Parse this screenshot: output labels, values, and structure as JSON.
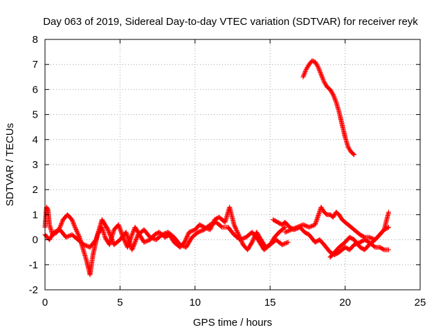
{
  "chart_data": {
    "type": "scatter",
    "title": "Day 063 of 2019, Sidereal Day-to-day VTEC variation (SDTVAR) for receiver reyk",
    "xlabel": "GPS time / hours",
    "ylabel": "SDTVAR / TECUs",
    "xlim": [
      0,
      25
    ],
    "ylim": [
      -2,
      8
    ],
    "xticks": [
      0,
      5,
      10,
      15,
      20,
      25
    ],
    "yticks": [
      -2,
      -1,
      0,
      1,
      2,
      3,
      4,
      5,
      6,
      7,
      8
    ],
    "grid": true,
    "marker": "+",
    "color": "#ff0000",
    "series": [
      {
        "name": "segment-1",
        "x": [
          0.0,
          0.1,
          0.2,
          0.3,
          0.5,
          0.8,
          1.0,
          1.2,
          1.5,
          1.8,
          2.0,
          2.3,
          2.6,
          2.8,
          3.0,
          3.2,
          3.5,
          3.8,
          4.0,
          4.3,
          4.6,
          4.9,
          5.2,
          5.5,
          5.8,
          6.0,
          6.3,
          6.6,
          7.0,
          7.3,
          7.6,
          8.0,
          8.3,
          8.6,
          9.0,
          9.3,
          9.6,
          10.0,
          10.3,
          10.6,
          11.0,
          11.3,
          11.6,
          12.0,
          12.3,
          12.6,
          12.9,
          13.2,
          13.5,
          13.8,
          14.1,
          14.4,
          14.7,
          15.0,
          15.3,
          15.6,
          16.0
        ],
        "y": [
          0.5,
          1.3,
          1.2,
          0.6,
          0.2,
          0.3,
          0.5,
          0.8,
          1.0,
          0.8,
          0.5,
          0.1,
          -0.5,
          -0.9,
          -1.4,
          -0.6,
          0.2,
          0.5,
          0.1,
          -0.2,
          0.4,
          0.6,
          0.1,
          -0.3,
          0.2,
          0.5,
          0.2,
          -0.1,
          0.0,
          0.2,
          0.3,
          0.1,
          0.2,
          -0.1,
          -0.3,
          -0.1,
          0.3,
          0.4,
          0.6,
          0.5,
          0.4,
          0.8,
          0.9,
          0.7,
          1.3,
          0.6,
          0.2,
          -0.2,
          -0.4,
          -0.1,
          0.3,
          0.0,
          -0.3,
          -0.2,
          0.1,
          0.3,
          0.5
        ]
      },
      {
        "name": "segment-2",
        "x": [
          0.0,
          0.3,
          0.6,
          1.0,
          1.4,
          1.8,
          2.2,
          2.6,
          3.0,
          3.4,
          3.8,
          4.2,
          4.6,
          5.0,
          5.4,
          5.8,
          6.2,
          6.6,
          7.0,
          7.4,
          7.8,
          8.2,
          8.6,
          9.0,
          9.4,
          9.8,
          10.2,
          10.6,
          11.0,
          11.4,
          11.8,
          12.2,
          12.6,
          13.0,
          13.4,
          13.8,
          14.2,
          14.6,
          15.0,
          15.4,
          15.8,
          16.2
        ],
        "y": [
          0.2,
          0.0,
          0.3,
          0.4,
          0.1,
          0.2,
          0.0,
          -0.2,
          -0.3,
          0.0,
          0.8,
          0.4,
          -0.2,
          0.0,
          0.3,
          -0.4,
          0.2,
          0.4,
          0.1,
          0.0,
          0.2,
          0.3,
          0.1,
          -0.2,
          -0.3,
          0.1,
          0.3,
          0.4,
          0.6,
          0.7,
          0.5,
          0.5,
          0.2,
          0.0,
          0.1,
          0.3,
          0.0,
          -0.4,
          -0.2,
          0.0,
          -0.2,
          -0.1
        ]
      },
      {
        "name": "segment-3",
        "x": [
          15.2,
          15.5,
          15.8,
          16.0,
          16.3,
          16.6,
          17.0,
          17.3,
          17.6,
          18.0,
          18.3,
          18.6,
          19.0,
          19.3,
          19.6,
          20.0,
          20.3,
          20.6,
          21.0,
          21.3,
          21.6,
          22.0,
          22.3,
          22.6,
          22.9
        ],
        "y": [
          0.8,
          0.7,
          0.6,
          0.7,
          0.5,
          0.4,
          0.5,
          0.3,
          0.2,
          -0.1,
          0.0,
          -0.2,
          -0.5,
          -0.6,
          -0.5,
          -0.3,
          -0.4,
          -0.2,
          -0.1,
          0.0,
          -0.1,
          -0.3,
          -0.3,
          -0.4,
          -0.4
        ]
      },
      {
        "name": "segment-4",
        "x": [
          16.0,
          16.4,
          16.8,
          17.2,
          17.6,
          18.0,
          18.4,
          18.6,
          18.8,
          19.0,
          19.2,
          19.4,
          19.6,
          19.8,
          20.0,
          20.2,
          20.4,
          20.6,
          20.8,
          21.0,
          21.3,
          21.6,
          22.0,
          22.3,
          22.6,
          22.9
        ],
        "y": [
          0.3,
          0.4,
          0.5,
          0.6,
          0.5,
          0.6,
          1.3,
          1.1,
          1.0,
          1.0,
          0.9,
          1.1,
          1.0,
          0.8,
          0.7,
          0.6,
          0.5,
          0.4,
          0.3,
          0.2,
          0.1,
          0.1,
          0.0,
          0.2,
          0.4,
          1.1
        ]
      },
      {
        "name": "segment-5",
        "x": [
          19.0,
          19.3,
          19.6,
          20.0,
          20.3,
          20.6,
          21.0,
          21.3,
          21.6,
          22.0,
          22.3,
          22.6,
          22.9
        ],
        "y": [
          -0.7,
          -0.5,
          -0.3,
          -0.1,
          0.1,
          0.0,
          -0.3,
          -0.4,
          -0.2,
          0.0,
          0.2,
          0.4,
          0.5
        ]
      },
      {
        "name": "segment-6",
        "x": [
          17.2,
          17.4,
          17.6,
          17.8,
          18.0,
          18.2,
          18.4,
          18.6,
          18.8,
          19.0,
          19.2,
          19.4,
          19.6,
          19.8,
          20.0,
          20.2,
          20.4,
          20.6
        ],
        "y": [
          6.5,
          6.8,
          7.0,
          7.15,
          7.1,
          6.9,
          6.6,
          6.3,
          6.1,
          6.0,
          5.8,
          5.5,
          5.1,
          4.6,
          4.1,
          3.7,
          3.5,
          3.4
        ]
      }
    ]
  }
}
